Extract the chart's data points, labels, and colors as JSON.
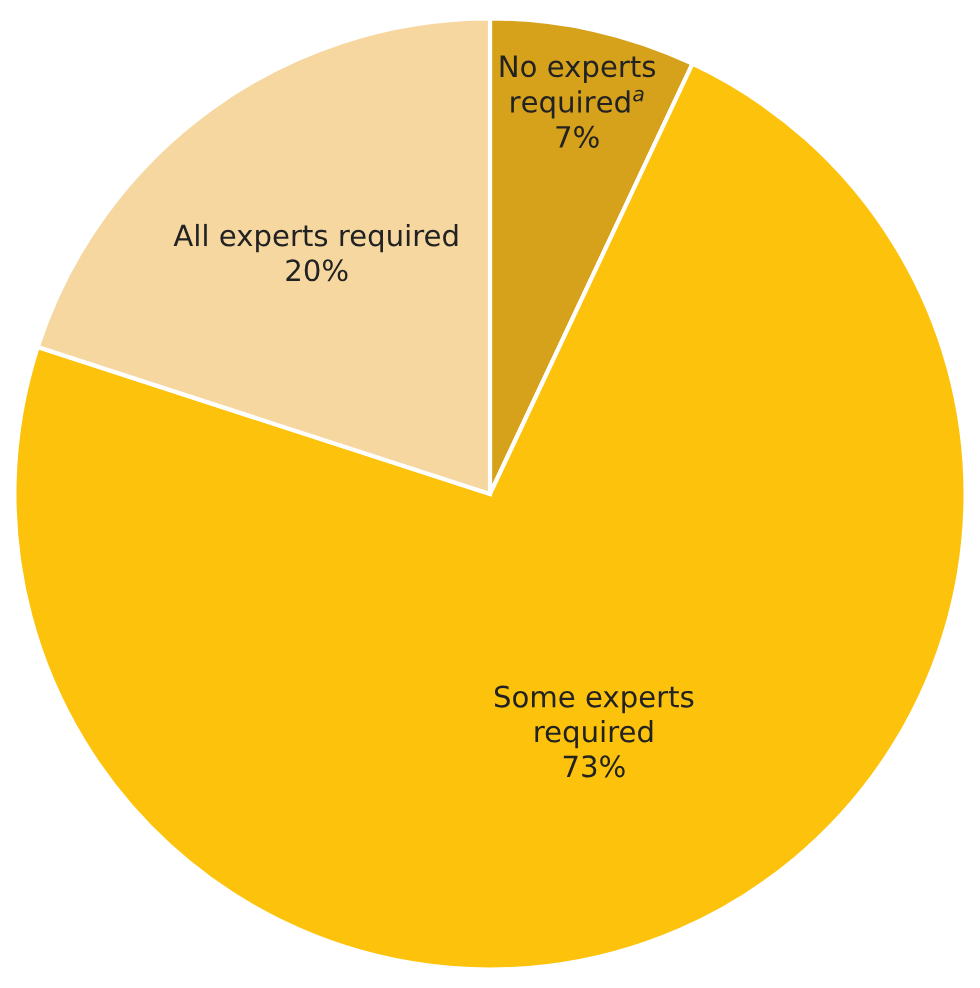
{
  "chart_data": {
    "type": "pie",
    "categories": [
      "No experts\nrequired$^{a}$",
      "Some experts\nrequired",
      "All experts required"
    ],
    "values": [
      7,
      73,
      20
    ],
    "value_labels": [
      "7%",
      "73%",
      "20%"
    ],
    "colors": [
      "#d6a21c",
      "#fcc20c",
      "#f6d7a0"
    ]
  }
}
